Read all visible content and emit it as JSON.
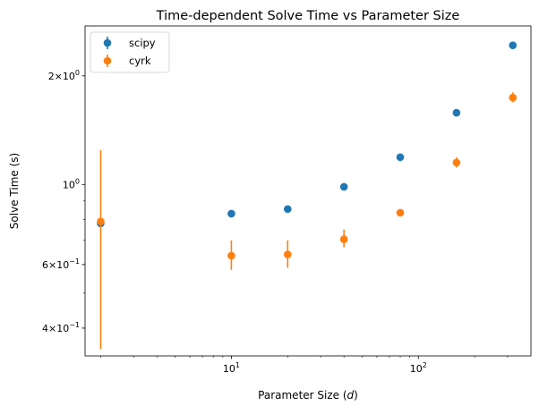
{
  "chart_data": {
    "type": "scatter",
    "title": "Time-dependent Solve Time vs Parameter Size",
    "xlabel": "Parameter Size (d)",
    "xlabel_parts": {
      "prefix": "Parameter Size (",
      "var": "d",
      "suffix": ")"
    },
    "ylabel": "Solve Time (s)",
    "xscale": "log",
    "yscale": "log",
    "xlim": [
      1.65,
      400
    ],
    "ylim": [
      0.335,
      2.75
    ],
    "x_ticks": [
      {
        "value": 10,
        "base": "10",
        "exp": "1"
      },
      {
        "value": 100,
        "base": "10",
        "exp": "2"
      }
    ],
    "y_ticks": [
      {
        "value": 0.4,
        "mant": "4",
        "base": "10",
        "exp": "−1"
      },
      {
        "value": 0.6,
        "mant": "6",
        "base": "10",
        "exp": "−1"
      },
      {
        "value": 1.0,
        "mant": "",
        "base": "10",
        "exp": "0"
      },
      {
        "value": 2.0,
        "mant": "2",
        "base": "10",
        "exp": "0"
      }
    ],
    "x_minor_ticks": [
      2,
      3,
      4,
      5,
      6,
      7,
      8,
      9,
      20,
      30,
      40,
      50,
      60,
      70,
      80,
      90,
      200,
      300
    ],
    "y_minor_ticks": [
      0.4,
      0.5,
      0.6,
      0.7,
      0.8,
      0.9,
      2.0
    ],
    "legend_position": "upper-left",
    "grid": false,
    "series": [
      {
        "name": "scipy",
        "color": "#1f77b4",
        "x": [
          2,
          10,
          20,
          40,
          80,
          160,
          320
        ],
        "y": [
          0.78,
          0.83,
          0.855,
          0.985,
          1.19,
          1.58,
          2.43
        ],
        "yerr": [
          0.01,
          0.01,
          0.01,
          0.01,
          0.01,
          0.02,
          0.02
        ]
      },
      {
        "name": "cyrk",
        "color": "#ff7f0e",
        "x": [
          2,
          10,
          20,
          40,
          80,
          160,
          320
        ],
        "y": [
          0.79,
          0.635,
          0.64,
          0.705,
          0.835,
          1.15,
          1.74
        ],
        "yerr_low": [
          0.44,
          0.055,
          0.052,
          0.035,
          0.012,
          0.035,
          0.05
        ],
        "yerr_high": [
          0.455,
          0.065,
          0.06,
          0.045,
          0.012,
          0.04,
          0.06
        ]
      }
    ]
  }
}
